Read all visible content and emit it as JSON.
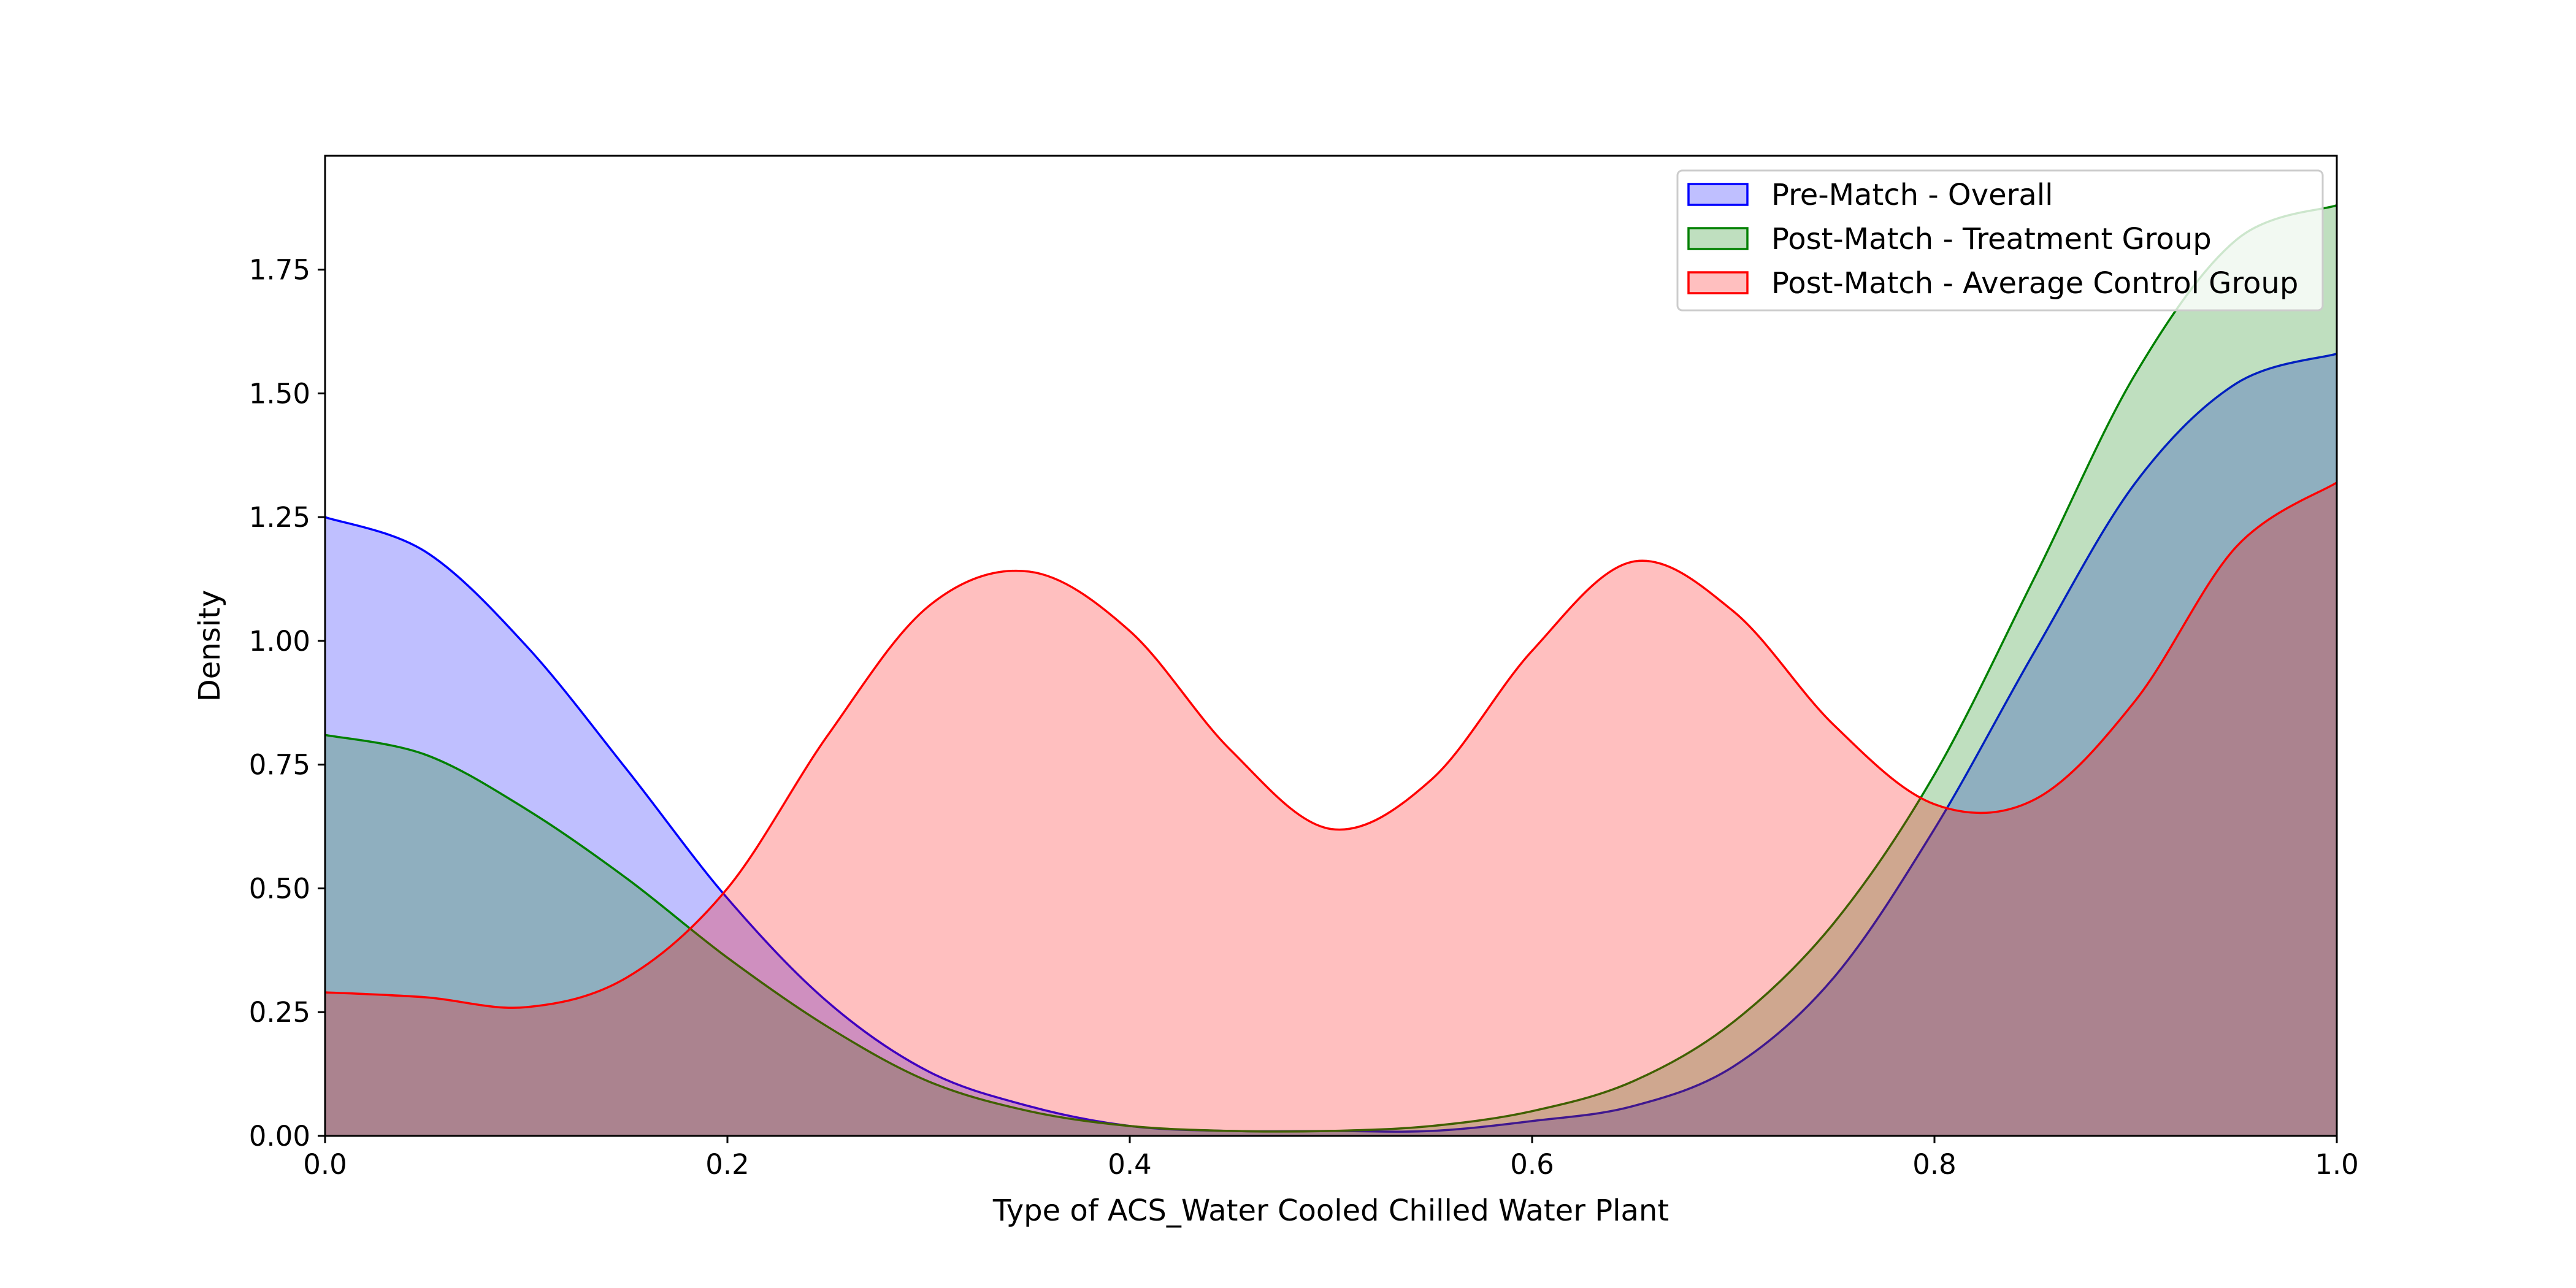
{
  "chart_data": {
    "type": "area",
    "title": "",
    "xlabel": "Type of ACS_Water Cooled Chilled Water Plant",
    "ylabel": "Density",
    "xlim": [
      0.0,
      1.0
    ],
    "ylim": [
      0.0,
      1.98
    ],
    "x_ticks": [
      0.0,
      0.2,
      0.4,
      0.6,
      0.8,
      1.0
    ],
    "x_tick_labels": [
      "0.0",
      "0.2",
      "0.4",
      "0.6",
      "0.8",
      "1.0"
    ],
    "y_ticks": [
      0.0,
      0.25,
      0.5,
      0.75,
      1.0,
      1.25,
      1.5,
      1.75
    ],
    "y_tick_labels": [
      "0.00",
      "0.25",
      "0.50",
      "0.75",
      "1.00",
      "1.25",
      "1.50",
      "1.75"
    ],
    "grid": false,
    "legend_position": "top-right",
    "x": [
      0.0,
      0.05,
      0.1,
      0.15,
      0.2,
      0.25,
      0.3,
      0.35,
      0.4,
      0.45,
      0.5,
      0.55,
      0.6,
      0.65,
      0.7,
      0.75,
      0.8,
      0.85,
      0.9,
      0.95,
      1.0
    ],
    "series": [
      {
        "name": "Pre-Match - Overall",
        "color": "#0000ff",
        "fill": "rgba(0,0,255,0.25)",
        "values": [
          1.25,
          1.18,
          0.99,
          0.74,
          0.48,
          0.27,
          0.13,
          0.06,
          0.02,
          0.01,
          0.01,
          0.01,
          0.03,
          0.06,
          0.14,
          0.32,
          0.62,
          0.98,
          1.32,
          1.52,
          1.58
        ]
      },
      {
        "name": "Post-Match - Treatment Group",
        "color": "#008000",
        "fill": "rgba(0,128,0,0.25)",
        "values": [
          0.81,
          0.77,
          0.66,
          0.52,
          0.36,
          0.22,
          0.11,
          0.05,
          0.02,
          0.01,
          0.01,
          0.02,
          0.05,
          0.11,
          0.23,
          0.43,
          0.73,
          1.13,
          1.54,
          1.81,
          1.88
        ]
      },
      {
        "name": "Post-Match - Average Control Group",
        "color": "#ff0000",
        "fill": "rgba(255,0,0,0.25)",
        "values": [
          0.29,
          0.28,
          0.26,
          0.32,
          0.5,
          0.81,
          1.07,
          1.14,
          1.02,
          0.78,
          0.62,
          0.72,
          0.98,
          1.16,
          1.06,
          0.83,
          0.67,
          0.68,
          0.88,
          1.19,
          1.32
        ]
      }
    ]
  }
}
